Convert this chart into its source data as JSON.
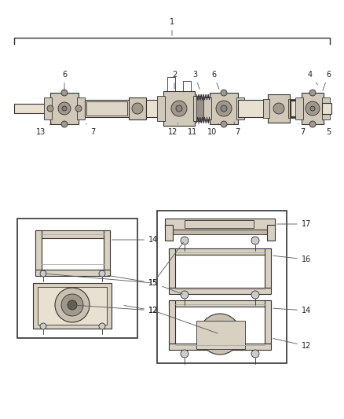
{
  "bg_color": "#ffffff",
  "fig_width": 4.38,
  "fig_height": 5.33,
  "dpi": 100,
  "lc": "#222222",
  "fs": 7.0,
  "line_color": "#333333",
  "shaft_fill": "#e8e0d0",
  "ujoint_fill": "#d0c8b8",
  "dark_fill": "#a0988a",
  "bracket_fill": "#d8d0c0",
  "bearing_outer": "#c8c0b0",
  "bearing_mid": "#a09888",
  "bearing_inner": "#606058",
  "boot_fill": "#989088"
}
